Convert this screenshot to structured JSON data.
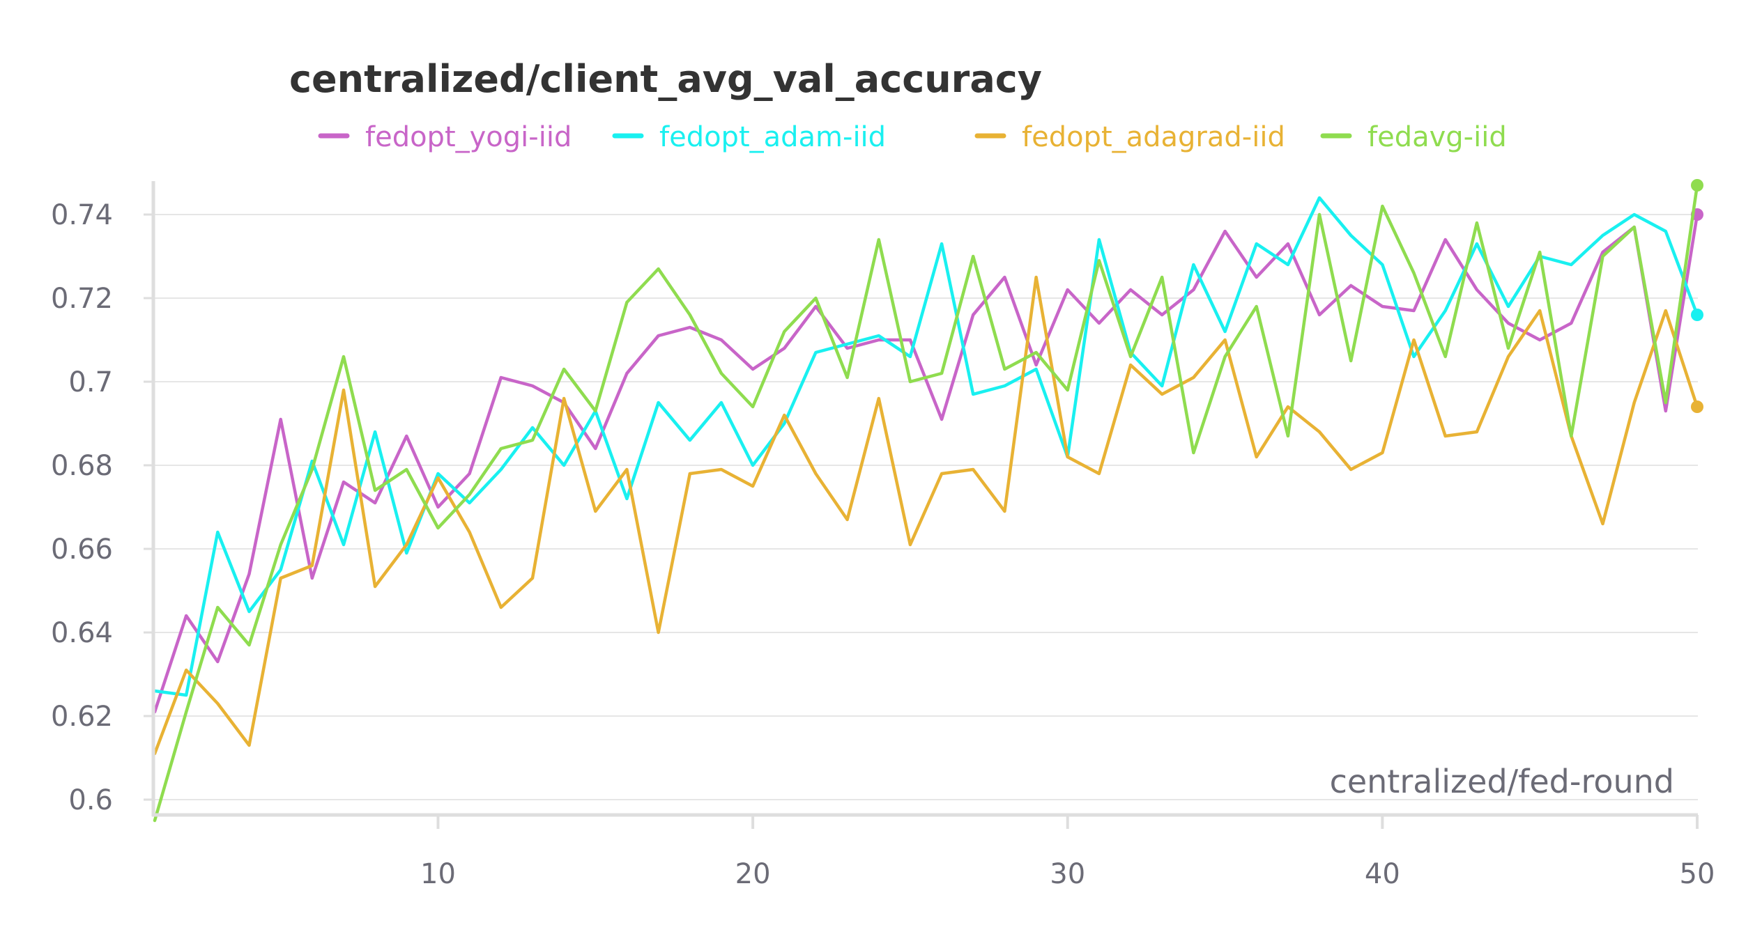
{
  "chart_data": {
    "type": "line",
    "title": "centralized/client_avg_val_accuracy",
    "xlabel": "centralized/fed-round",
    "ylabel": "",
    "xlim": [
      1,
      50
    ],
    "ylim": [
      0.595,
      0.748
    ],
    "x_ticks": [
      {
        "value": 10,
        "label": "10"
      },
      {
        "value": 20,
        "label": "20"
      },
      {
        "value": 30,
        "label": "30"
      },
      {
        "value": 40,
        "label": "40"
      },
      {
        "value": 50,
        "label": "50"
      }
    ],
    "y_ticks": [
      {
        "value": 0.6,
        "label": "0.6"
      },
      {
        "value": 0.62,
        "label": "0.62"
      },
      {
        "value": 0.64,
        "label": "0.64"
      },
      {
        "value": 0.66,
        "label": "0.66"
      },
      {
        "value": 0.68,
        "label": "0.68"
      },
      {
        "value": 0.7,
        "label": "0.7"
      },
      {
        "value": 0.72,
        "label": "0.72"
      },
      {
        "value": 0.74,
        "label": "0.74"
      }
    ],
    "legend_position": "top-center",
    "grid": true,
    "x": [
      1,
      2,
      3,
      4,
      5,
      6,
      7,
      8,
      9,
      10,
      11,
      12,
      13,
      14,
      15,
      16,
      17,
      18,
      19,
      20,
      21,
      22,
      23,
      24,
      25,
      26,
      27,
      28,
      29,
      30,
      31,
      32,
      33,
      34,
      35,
      36,
      37,
      38,
      39,
      40,
      41,
      42,
      43,
      44,
      45,
      46,
      47,
      48,
      49,
      50
    ],
    "series": [
      {
        "name": "fedopt_yogi-iid",
        "color": "#c865c8",
        "values": [
          0.621,
          0.644,
          0.633,
          0.654,
          0.691,
          0.653,
          0.676,
          0.671,
          0.687,
          0.67,
          0.678,
          0.701,
          0.699,
          0.695,
          0.684,
          0.702,
          0.711,
          0.713,
          0.71,
          0.703,
          0.708,
          0.718,
          0.708,
          0.71,
          0.71,
          0.691,
          0.716,
          0.725,
          0.704,
          0.722,
          0.714,
          0.722,
          0.716,
          0.722,
          0.736,
          0.725,
          0.733,
          0.716,
          0.723,
          0.718,
          0.717,
          0.734,
          0.722,
          0.714,
          0.71,
          0.714,
          0.731,
          0.737,
          0.693,
          0.74
        ]
      },
      {
        "name": "fedopt_adam-iid",
        "color": "#19f0f0",
        "values": [
          0.626,
          0.625,
          0.664,
          0.645,
          0.655,
          0.681,
          0.661,
          0.688,
          0.659,
          0.678,
          0.671,
          0.679,
          0.689,
          0.68,
          0.693,
          0.672,
          0.695,
          0.686,
          0.695,
          0.68,
          0.69,
          0.707,
          0.709,
          0.711,
          0.706,
          0.733,
          0.697,
          0.699,
          0.703,
          0.682,
          0.734,
          0.707,
          0.699,
          0.728,
          0.712,
          0.733,
          0.728,
          0.744,
          0.735,
          0.728,
          0.706,
          0.717,
          0.733,
          0.718,
          0.73,
          0.728,
          0.735,
          0.74,
          0.736,
          0.716
        ]
      },
      {
        "name": "fedopt_adagrad-iid",
        "color": "#e8b234",
        "values": [
          0.611,
          0.631,
          0.623,
          0.613,
          0.653,
          0.656,
          0.698,
          0.651,
          0.661,
          0.677,
          0.664,
          0.646,
          0.653,
          0.696,
          0.669,
          0.679,
          0.64,
          0.678,
          0.679,
          0.675,
          0.692,
          0.678,
          0.667,
          0.696,
          0.661,
          0.678,
          0.679,
          0.669,
          0.725,
          0.682,
          0.678,
          0.704,
          0.697,
          0.701,
          0.71,
          0.682,
          0.694,
          0.688,
          0.679,
          0.683,
          0.71,
          0.687,
          0.688,
          0.706,
          0.717,
          0.687,
          0.666,
          0.695,
          0.717,
          0.694
        ]
      },
      {
        "name": "fedavg-iid",
        "color": "#8fdc4f",
        "values": [
          0.595,
          0.621,
          0.646,
          0.637,
          0.661,
          0.679,
          0.706,
          0.674,
          0.679,
          0.665,
          0.673,
          0.684,
          0.686,
          0.703,
          0.693,
          0.719,
          0.727,
          0.716,
          0.702,
          0.694,
          0.712,
          0.72,
          0.701,
          0.734,
          0.7,
          0.702,
          0.73,
          0.703,
          0.707,
          0.698,
          0.729,
          0.706,
          0.725,
          0.683,
          0.706,
          0.718,
          0.687,
          0.74,
          0.705,
          0.742,
          0.726,
          0.706,
          0.738,
          0.708,
          0.731,
          0.687,
          0.73,
          0.737,
          0.695,
          0.747
        ]
      }
    ]
  }
}
